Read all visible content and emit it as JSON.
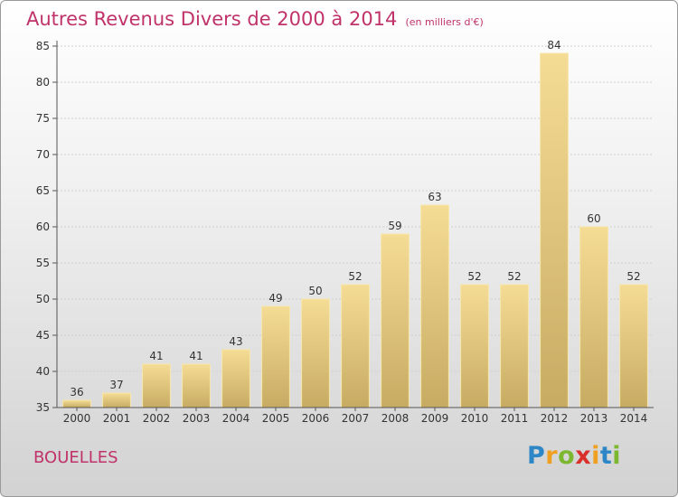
{
  "title": "Autres Revenus Divers de 2000 à 2014",
  "unit": "(en milliers d'€)",
  "commune": "BOUELLES",
  "brand": {
    "letters": [
      "P",
      "r",
      "o",
      "x",
      "i",
      "t",
      "i"
    ],
    "colors": [
      "#2d86c6",
      "#f0a020",
      "#7cb82f",
      "#d9302c",
      "#f0a020",
      "#2d86c6",
      "#7cb82f"
    ]
  },
  "colors": {
    "accent": "#c0336a",
    "bar_light": "#f5dc95",
    "bar_dark": "#c7ab63",
    "bar_edge": "#f7e6a8"
  },
  "chart_data": {
    "type": "bar",
    "title": "Autres Revenus Divers de 2000 à 2014",
    "categories": [
      "2000",
      "2001",
      "2002",
      "2003",
      "2004",
      "2005",
      "2006",
      "2007",
      "2008",
      "2009",
      "2010",
      "2011",
      "2012",
      "2013",
      "2014"
    ],
    "values": [
      36,
      37,
      41,
      41,
      43,
      49,
      50,
      52,
      59,
      63,
      52,
      52,
      84,
      60,
      52
    ],
    "ylim": [
      35,
      85
    ],
    "yticks": [
      35,
      40,
      45,
      50,
      55,
      60,
      65,
      70,
      75,
      80,
      85
    ],
    "grid": true,
    "data_labels": true
  }
}
